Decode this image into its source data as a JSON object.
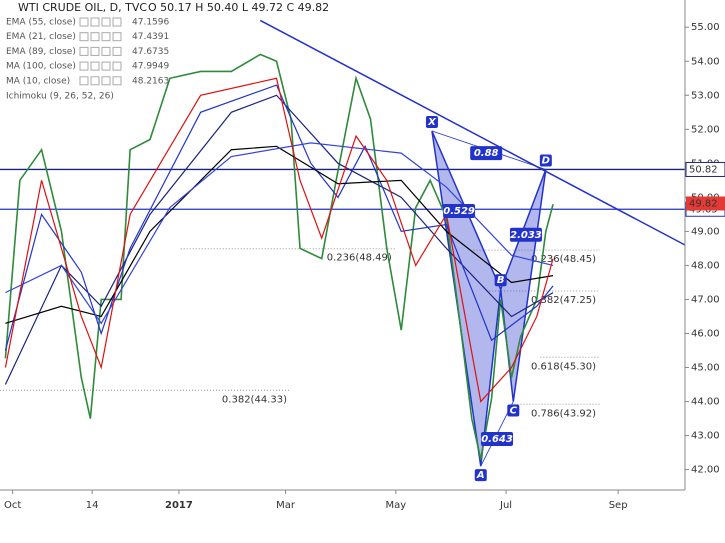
{
  "chart_data": {
    "type": "line",
    "title": "WTI CRUDE OIL, D, TVC",
    "ohlc_label": "O 50.17 H 50.40 L 49.72 C 49.82",
    "xlim": [
      -7,
      372
    ],
    "ylim": [
      41.4,
      55.8
    ],
    "xticks": [
      {
        "value": 0,
        "label": "Oct"
      },
      {
        "value": 44,
        "label": "14"
      },
      {
        "value": 92,
        "label": "2017"
      },
      {
        "value": 151,
        "label": "Mar"
      },
      {
        "value": 212,
        "label": "May"
      },
      {
        "value": 273,
        "label": "Jul"
      },
      {
        "value": 335,
        "label": "Sep"
      }
    ],
    "yticks": [
      {
        "value": 42,
        "label": "42.00"
      },
      {
        "value": 43,
        "label": "43.00"
      },
      {
        "value": 44,
        "label": "44.00"
      },
      {
        "value": 45,
        "label": "45.00"
      },
      {
        "value": 46,
        "label": "46.00"
      },
      {
        "value": 47,
        "label": "47.00"
      },
      {
        "value": 48,
        "label": "48.00"
      },
      {
        "value": 49,
        "label": "49.00"
      },
      {
        "value": 50,
        "label": "50.00"
      },
      {
        "value": 51,
        "label": "51.00"
      },
      {
        "value": 52,
        "label": "52.00"
      },
      {
        "value": 53,
        "label": "53.00"
      },
      {
        "value": 54,
        "label": "54.00"
      },
      {
        "value": 55,
        "label": "55.00"
      }
    ],
    "series": [
      {
        "name": "WTI CRUDE OIL",
        "color": "#2e8b3a",
        "x": [
          -4,
          4,
          16,
          27,
          38,
          43,
          49,
          60,
          65,
          76,
          87,
          104,
          121,
          137,
          146,
          154,
          159,
          171,
          179,
          190,
          198,
          207,
          215,
          223,
          231,
          240,
          248,
          254,
          259,
          265,
          270,
          276,
          281,
          290,
          295,
          299
        ],
        "values": [
          45.27,
          50.5,
          51.4,
          49,
          44.7,
          43.5,
          47,
          47,
          51.4,
          51.7,
          53.5,
          53.7,
          53.7,
          54.2,
          54,
          52.3,
          48.5,
          48.2,
          50.5,
          53.5,
          52.3,
          48.5,
          46.1,
          49.7,
          50.5,
          49.4,
          46.1,
          43.5,
          42.3,
          44.1,
          47,
          44.7,
          45.9,
          47,
          49,
          49.8
        ]
      },
      {
        "name": "EMA (55, close)",
        "legend_value": 47.1596,
        "color": "#1a237e",
        "x": [
          -4,
          27,
          49,
          76,
          121,
          146,
          180,
          215,
          240,
          276,
          299
        ],
        "values": [
          44.5,
          48,
          46.8,
          49.5,
          52.5,
          53,
          51,
          50,
          48.5,
          46.5,
          47.2
        ]
      },
      {
        "name": "EMA (21, close)",
        "legend_value": 47.4391,
        "color": "#2233cc",
        "x": [
          -4,
          16,
          38,
          49,
          65,
          104,
          146,
          165,
          180,
          195,
          215,
          240,
          265,
          290,
          299
        ],
        "values": [
          45.5,
          49.5,
          47.8,
          46,
          48.5,
          52.5,
          53.3,
          51,
          50,
          51.5,
          49,
          49.2,
          45.8,
          46.8,
          47.4
        ]
      },
      {
        "name": "EMA (89, close)",
        "legend_value": 47.6735,
        "color": "#000000",
        "x": [
          -4,
          27,
          49,
          76,
          121,
          146,
          180,
          215,
          240,
          276,
          299
        ],
        "values": [
          46.3,
          46.8,
          46.5,
          49,
          51.4,
          51.5,
          50.4,
          50.5,
          49,
          47.5,
          47.7
        ]
      },
      {
        "name": "MA (100, close)",
        "legend_value": 47.9949,
        "color": "#3344dd",
        "x": [
          -4,
          27,
          49,
          87,
          121,
          165,
          215,
          240,
          276,
          299
        ],
        "values": [
          47.2,
          48,
          46.3,
          49.7,
          51.2,
          51.6,
          51.3,
          50.3,
          48.3,
          48
        ]
      },
      {
        "name": "MA (10, close)",
        "legend_value": 48.2163,
        "color": "#dd1111",
        "x": [
          -4,
          16,
          38,
          49,
          65,
          104,
          146,
          159,
          171,
          190,
          207,
          223,
          240,
          259,
          276,
          290,
          299
        ],
        "values": [
          45,
          50.5,
          46.5,
          45,
          49.5,
          53,
          53.5,
          50.5,
          48.8,
          51.8,
          50.5,
          48,
          49.5,
          44,
          45,
          46.5,
          48.2
        ]
      }
    ],
    "indicator": "Ichimoku (9, 26, 52, 26)",
    "price_lines": [
      {
        "value": 50.82,
        "label": "50.82",
        "color": "#1a237e"
      },
      {
        "value": 49.65,
        "label": "49.65",
        "color": "#2233cc"
      }
    ],
    "last_price": {
      "value": 49.82,
      "label": "49.82",
      "color": "#e53935"
    },
    "trendline": {
      "x": [
        137,
        372
      ],
      "values": [
        55.2,
        48.6
      ],
      "color": "#2233cc"
    },
    "pattern": {
      "color": "#2233cc",
      "points": [
        {
          "label": "X",
          "x": 232,
          "value": 51.95
        },
        {
          "label": "A",
          "x": 259,
          "value": 42.1
        },
        {
          "label": "B",
          "x": 270,
          "value": 47.3
        },
        {
          "label": "C",
          "x": 277,
          "value": 44
        },
        {
          "label": "D",
          "x": 295,
          "value": 50.82
        }
      ],
      "ratios": [
        {
          "label": "0.88",
          "x": 262,
          "value": 51.3
        },
        {
          "label": "0.529",
          "x": 247,
          "value": 49.6
        },
        {
          "label": "2.033",
          "x": 284,
          "value": 48.9
        },
        {
          "label": "0.643",
          "x": 268,
          "value": 42.9
        }
      ]
    },
    "fib_levels": [
      {
        "label": "0.236(48.45)",
        "value": 48.45,
        "x": [
          255,
          325
        ]
      },
      {
        "label": "0.382(47.25)",
        "value": 47.25,
        "x": [
          262,
          325
        ]
      },
      {
        "label": "0.618(45.30)",
        "value": 45.3,
        "x": [
          292,
          325
        ]
      },
      {
        "label": "0.786(43.92)",
        "value": 43.92,
        "x": [
          276,
          325
        ]
      },
      {
        "label": "0.382(44.33)",
        "value": 44.33,
        "x": [
          -7,
          154
        ]
      },
      {
        "label": "0.236(48.49)",
        "value": 48.49,
        "x": [
          93,
          212
        ]
      }
    ]
  }
}
